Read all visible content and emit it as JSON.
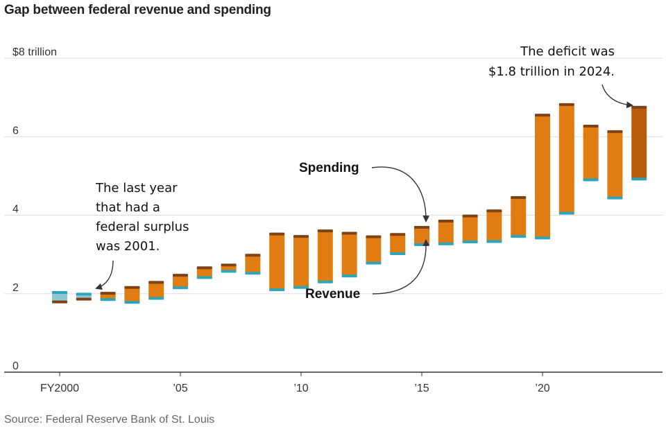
{
  "title": "Gap between federal revenue and spending",
  "source": "Source: Federal Reserve Bank of St. Louis",
  "chart_data": {
    "type": "floating-bar",
    "title": "Gap between federal revenue and spending",
    "xlabel": "",
    "ylabel": "",
    "ylim": [
      0,
      8
    ],
    "grid": true,
    "y_ticks": [
      {
        "value": 8,
        "label": "$8 trillion"
      },
      {
        "value": 6,
        "label": "6"
      },
      {
        "value": 4,
        "label": "4"
      },
      {
        "value": 2,
        "label": "2"
      },
      {
        "value": 0,
        "label": "0"
      }
    ],
    "x_ticks": [
      {
        "year": 2000,
        "label": "FY2000"
      },
      {
        "year": 2005,
        "label": "’05"
      },
      {
        "year": 2010,
        "label": "’10"
      },
      {
        "year": 2015,
        "label": "’15"
      },
      {
        "year": 2020,
        "label": "’20"
      }
    ],
    "series": [
      {
        "name": "Revenue",
        "color": "#2aa6b8"
      },
      {
        "name": "Spending",
        "color": "#8a4a16"
      }
    ],
    "bars": [
      {
        "year": 2000,
        "revenue": 2.03,
        "spending": 1.79
      },
      {
        "year": 2001,
        "revenue": 1.99,
        "spending": 1.86
      },
      {
        "year": 2002,
        "revenue": 1.85,
        "spending": 2.01
      },
      {
        "year": 2003,
        "revenue": 1.78,
        "spending": 2.16
      },
      {
        "year": 2004,
        "revenue": 1.88,
        "spending": 2.29
      },
      {
        "year": 2005,
        "revenue": 2.15,
        "spending": 2.47
      },
      {
        "year": 2006,
        "revenue": 2.41,
        "spending": 2.66
      },
      {
        "year": 2007,
        "revenue": 2.57,
        "spending": 2.73
      },
      {
        "year": 2008,
        "revenue": 2.52,
        "spending": 2.98
      },
      {
        "year": 2009,
        "revenue": 2.1,
        "spending": 3.52
      },
      {
        "year": 2010,
        "revenue": 2.16,
        "spending": 3.46
      },
      {
        "year": 2011,
        "revenue": 2.3,
        "spending": 3.6
      },
      {
        "year": 2012,
        "revenue": 2.45,
        "spending": 3.54
      },
      {
        "year": 2013,
        "revenue": 2.78,
        "spending": 3.45
      },
      {
        "year": 2014,
        "revenue": 3.02,
        "spending": 3.51
      },
      {
        "year": 2015,
        "revenue": 3.25,
        "spending": 3.69
      },
      {
        "year": 2016,
        "revenue": 3.27,
        "spending": 3.85
      },
      {
        "year": 2017,
        "revenue": 3.32,
        "spending": 3.98
      },
      {
        "year": 2018,
        "revenue": 3.33,
        "spending": 4.11
      },
      {
        "year": 2019,
        "revenue": 3.46,
        "spending": 4.45
      },
      {
        "year": 2020,
        "revenue": 3.42,
        "spending": 6.55
      },
      {
        "year": 2021,
        "revenue": 4.05,
        "spending": 6.82
      },
      {
        "year": 2022,
        "revenue": 4.9,
        "spending": 6.27
      },
      {
        "year": 2023,
        "revenue": 4.44,
        "spending": 6.13
      },
      {
        "year": 2024,
        "revenue": 4.92,
        "spending": 6.75
      }
    ],
    "annotations": {
      "surplus": {
        "lines": [
          "The last year",
          "that had a",
          "federal surplus",
          "was 2001."
        ]
      },
      "spending": {
        "text": "Spending"
      },
      "revenue": {
        "text": "Revenue"
      },
      "deficit": {
        "lines": [
          "The deficit was",
          "$1.8 trillion in 2024."
        ]
      }
    }
  },
  "colors": {
    "bar_fill": "#e07c12",
    "bar_fill_latest": "#b85c0a",
    "surplus_fill": "#8ec9d3",
    "spending_cap": "#7d4216",
    "revenue_cap": "#2aa6b8",
    "grid": "#dddddd",
    "axis": "#333333"
  }
}
